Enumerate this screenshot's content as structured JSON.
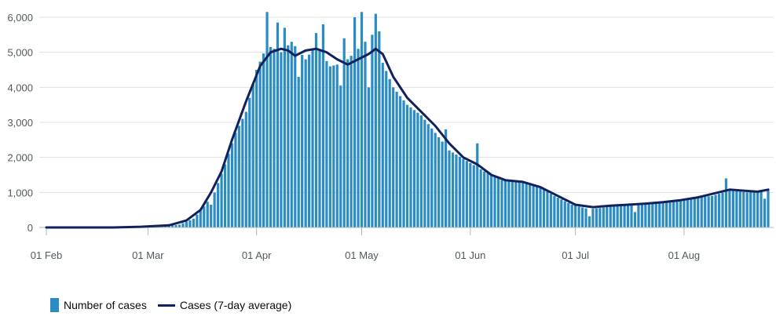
{
  "chart_data": {
    "type": "bar",
    "title": "",
    "xlabel": "",
    "ylabel": "",
    "ylim": [
      0,
      6000
    ],
    "yticks": [
      0,
      1000,
      2000,
      3000,
      4000,
      5000,
      6000
    ],
    "ytick_labels": [
      "0",
      "1,000",
      "2,000",
      "3,000",
      "4,000",
      "5,000",
      "6,000"
    ],
    "xlim": [
      "2020-02-01",
      "2020-08-25"
    ],
    "xtick_labels": [
      "01 Feb",
      "01 Mar",
      "01 Apr",
      "01 May",
      "01 Jun",
      "01 Jul",
      "01 Aug"
    ],
    "grid": "horizontal",
    "legend_position": "bottom-left",
    "colors": {
      "bars": "#2b8cc4",
      "line": "#12215e",
      "grid": "#e0e0e0",
      "axis": "#b1b4b6"
    },
    "series": [
      {
        "name": "Number of cases",
        "kind": "bar",
        "anchors": [
          [
            "2020-02-01",
            0
          ],
          [
            "2020-02-26",
            0
          ],
          [
            "2020-03-05",
            30
          ],
          [
            "2020-03-10",
            80
          ],
          [
            "2020-03-14",
            250
          ],
          [
            "2020-03-17",
            600
          ],
          [
            "2020-03-20",
            1000
          ],
          [
            "2020-03-23",
            1800
          ],
          [
            "2020-03-26",
            2700
          ],
          [
            "2020-03-29",
            3300
          ],
          [
            "2020-04-01",
            4500
          ],
          [
            "2020-04-04",
            5200
          ],
          [
            "2020-04-08",
            5000
          ],
          [
            "2020-04-11",
            5300
          ],
          [
            "2020-04-15",
            4800
          ],
          [
            "2020-04-18",
            5200
          ],
          [
            "2020-04-22",
            4600
          ],
          [
            "2020-04-26",
            4700
          ],
          [
            "2020-04-30",
            5100
          ],
          [
            "2020-05-04",
            5500
          ],
          [
            "2020-05-07",
            4700
          ],
          [
            "2020-05-10",
            4000
          ],
          [
            "2020-05-14",
            3500
          ],
          [
            "2020-05-18",
            3200
          ],
          [
            "2020-05-22",
            2700
          ],
          [
            "2020-05-26",
            2200
          ],
          [
            "2020-05-31",
            1900
          ],
          [
            "2020-06-05",
            1600
          ],
          [
            "2020-06-10",
            1350
          ],
          [
            "2020-06-15",
            1300
          ],
          [
            "2020-06-20",
            1200
          ],
          [
            "2020-06-25",
            900
          ],
          [
            "2020-06-30",
            650
          ],
          [
            "2020-07-05",
            520
          ],
          [
            "2020-07-10",
            580
          ],
          [
            "2020-07-15",
            650
          ],
          [
            "2020-07-20",
            650
          ],
          [
            "2020-07-25",
            700
          ],
          [
            "2020-07-30",
            780
          ],
          [
            "2020-08-04",
            850
          ],
          [
            "2020-08-09",
            900
          ],
          [
            "2020-08-14",
            1050
          ],
          [
            "2020-08-19",
            1000
          ],
          [
            "2020-08-25",
            1100
          ]
        ],
        "spikes": [
          [
            "2020-04-04",
            6150
          ],
          [
            "2020-04-07",
            5850
          ],
          [
            "2020-04-09",
            5700
          ],
          [
            "2020-04-18",
            5550
          ],
          [
            "2020-04-20",
            5800
          ],
          [
            "2020-04-26",
            5400
          ],
          [
            "2020-04-29",
            6000
          ],
          [
            "2020-05-01",
            6150
          ],
          [
            "2020-05-05",
            6100
          ],
          [
            "2020-05-06",
            5600
          ],
          [
            "2020-05-25",
            3250
          ],
          [
            "2020-06-03",
            2400
          ],
          [
            "2020-08-13",
            1400
          ]
        ],
        "dips": [
          [
            "2020-03-19",
            650
          ],
          [
            "2020-04-13",
            4300
          ],
          [
            "2020-04-25",
            4050
          ],
          [
            "2020-05-03",
            4000
          ],
          [
            "2020-05-25",
            2800
          ],
          [
            "2020-07-05",
            320
          ],
          [
            "2020-07-18",
            440
          ],
          [
            "2020-08-24",
            820
          ]
        ]
      },
      {
        "name": "Cases (7-day average)",
        "kind": "line",
        "points": [
          [
            "2020-02-01",
            0
          ],
          [
            "2020-02-20",
            0
          ],
          [
            "2020-02-28",
            20
          ],
          [
            "2020-03-07",
            60
          ],
          [
            "2020-03-12",
            200
          ],
          [
            "2020-03-16",
            500
          ],
          [
            "2020-03-19",
            1000
          ],
          [
            "2020-03-22",
            1600
          ],
          [
            "2020-03-25",
            2500
          ],
          [
            "2020-03-29",
            3600
          ],
          [
            "2020-04-02",
            4600
          ],
          [
            "2020-04-05",
            5000
          ],
          [
            "2020-04-08",
            5100
          ],
          [
            "2020-04-10",
            5050
          ],
          [
            "2020-04-12",
            4900
          ],
          [
            "2020-04-15",
            5050
          ],
          [
            "2020-04-18",
            5100
          ],
          [
            "2020-04-21",
            5000
          ],
          [
            "2020-04-24",
            4800
          ],
          [
            "2020-04-27",
            4650
          ],
          [
            "2020-04-30",
            4800
          ],
          [
            "2020-05-03",
            4950
          ],
          [
            "2020-05-05",
            5100
          ],
          [
            "2020-05-07",
            4950
          ],
          [
            "2020-05-10",
            4300
          ],
          [
            "2020-05-14",
            3700
          ],
          [
            "2020-05-18",
            3300
          ],
          [
            "2020-05-22",
            2900
          ],
          [
            "2020-05-26",
            2400
          ],
          [
            "2020-05-30",
            2000
          ],
          [
            "2020-06-03",
            1800
          ],
          [
            "2020-06-07",
            1500
          ],
          [
            "2020-06-11",
            1350
          ],
          [
            "2020-06-16",
            1300
          ],
          [
            "2020-06-21",
            1150
          ],
          [
            "2020-06-26",
            900
          ],
          [
            "2020-07-01",
            650
          ],
          [
            "2020-07-06",
            580
          ],
          [
            "2020-07-11",
            620
          ],
          [
            "2020-07-16",
            650
          ],
          [
            "2020-07-21",
            680
          ],
          [
            "2020-07-26",
            720
          ],
          [
            "2020-07-31",
            780
          ],
          [
            "2020-08-05",
            860
          ],
          [
            "2020-08-10",
            980
          ],
          [
            "2020-08-14",
            1080
          ],
          [
            "2020-08-18",
            1050
          ],
          [
            "2020-08-22",
            1020
          ],
          [
            "2020-08-25",
            1080
          ]
        ]
      }
    ]
  },
  "legend": {
    "bars_label": "Number of cases",
    "line_label": "Cases (7-day average)"
  }
}
